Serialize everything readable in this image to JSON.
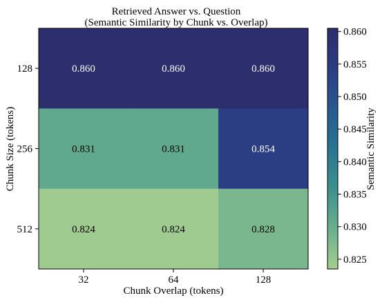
{
  "chart_data": {
    "type": "heatmap",
    "title": "Retrieved Answer vs. Question",
    "subtitle": "(Semantic Similarity by Chunk vs. Overlap)",
    "xlabel": "Chunk Overlap (tokens)",
    "ylabel": "Chunk Size (tokens)",
    "x_categories": [
      "32",
      "64",
      "128"
    ],
    "y_categories": [
      "128",
      "256",
      "512"
    ],
    "values": [
      [
        0.86,
        0.86,
        0.86
      ],
      [
        0.831,
        0.831,
        0.854
      ],
      [
        0.824,
        0.824,
        0.828
      ]
    ],
    "cell_labels": [
      [
        "0.860",
        "0.860",
        "0.860"
      ],
      [
        "0.831",
        "0.831",
        "0.854"
      ],
      [
        "0.824",
        "0.824",
        "0.828"
      ]
    ],
    "colorbar": {
      "label": "Semantic Similarity",
      "range": [
        0.8235,
        0.8605
      ],
      "ticks": [
        "0.825",
        "0.830",
        "0.835",
        "0.840",
        "0.845",
        "0.850",
        "0.855",
        "0.860"
      ],
      "colormap": "crest",
      "stops": [
        "#a5cd90",
        "#6aaf8e",
        "#3c918e",
        "#287591",
        "#265991",
        "#2c3c82",
        "#2c2d6c"
      ]
    },
    "grid": false
  }
}
